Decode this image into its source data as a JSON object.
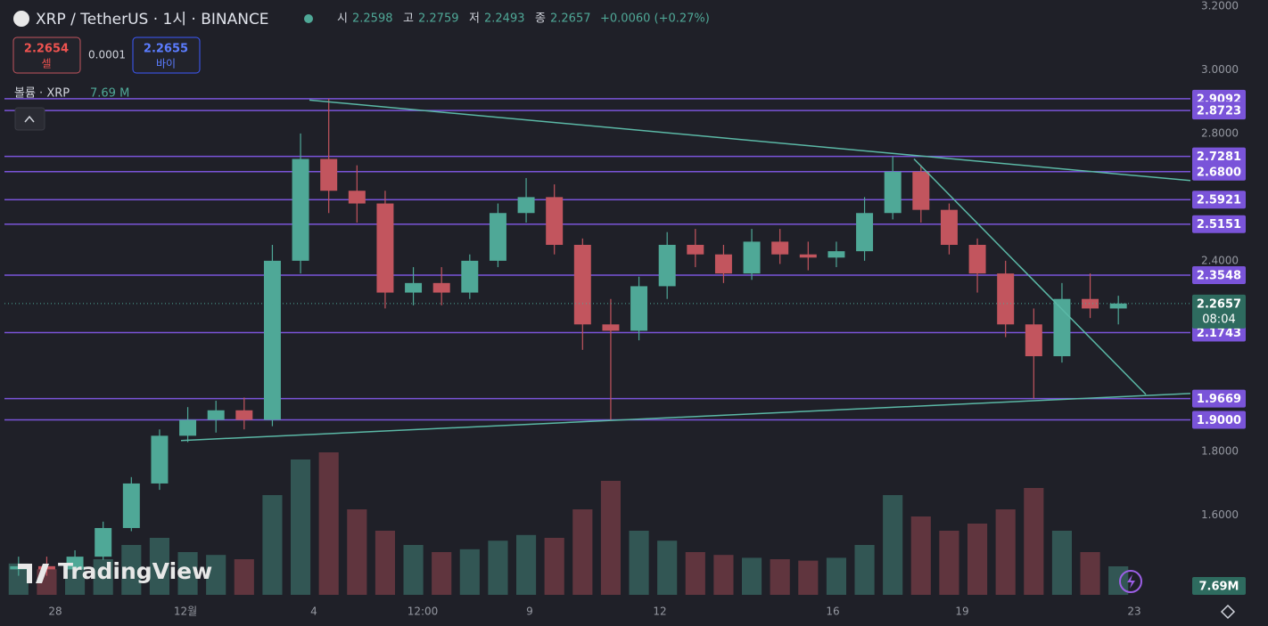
{
  "header": {
    "symbol": "XRP / TetherUS · 1시 · BINANCE",
    "ohlc": [
      {
        "key": "시",
        "value": "2.2598"
      },
      {
        "key": "고",
        "value": "2.2759"
      },
      {
        "key": "저",
        "value": "2.2493"
      },
      {
        "key": "종",
        "value": "2.2657"
      }
    ],
    "change": "+0.0060 (+0.27%)",
    "sell": {
      "price": "2.2654",
      "label": "셀"
    },
    "spread": "0.0001",
    "buy": {
      "price": "2.2655",
      "label": "바이"
    },
    "volume_title": "볼륨 · XRP",
    "volume_value": "7.69 M",
    "logo": "TradingView"
  },
  "chart_data": {
    "type": "candlestick",
    "ylim": [
      1.35,
      3.2
    ],
    "yticks": [
      {
        "value": 3.2,
        "label": "3.2000"
      },
      {
        "value": 3.0,
        "label": "3.0000"
      },
      {
        "value": 2.8,
        "label": "2.8000"
      },
      {
        "value": 2.4,
        "label": "2.4000"
      },
      {
        "value": 1.8,
        "label": "1.8000"
      },
      {
        "value": 1.6,
        "label": "1.6000"
      }
    ],
    "x_labels": [
      "28",
      "12월",
      "4",
      "12:00",
      "9",
      "12",
      "16",
      "19",
      "23"
    ],
    "open": [
      1.43,
      1.44,
      1.43,
      1.47,
      1.56,
      1.7,
      1.85,
      1.9,
      1.93,
      1.9,
      2.4,
      2.72,
      2.62,
      2.58,
      2.3,
      2.33,
      2.3,
      2.4,
      2.55,
      2.6,
      2.45,
      2.2,
      2.18,
      2.32,
      2.45,
      2.42,
      2.36,
      2.46,
      2.42,
      2.41,
      2.43,
      2.55,
      2.68,
      2.56,
      2.45,
      2.36,
      2.2,
      2.1,
      2.28,
      2.25
    ],
    "high": [
      1.47,
      1.47,
      1.49,
      1.58,
      1.72,
      1.87,
      1.94,
      1.96,
      1.97,
      2.45,
      2.8,
      2.9092,
      2.7,
      2.62,
      2.38,
      2.38,
      2.42,
      2.58,
      2.66,
      2.64,
      2.47,
      2.28,
      2.35,
      2.49,
      2.5,
      2.45,
      2.5,
      2.5,
      2.46,
      2.46,
      2.6,
      2.7281,
      2.7,
      2.58,
      2.47,
      2.4,
      2.25,
      2.33,
      2.36,
      2.29
    ],
    "low": [
      1.41,
      1.41,
      1.42,
      1.46,
      1.55,
      1.68,
      1.83,
      1.86,
      1.87,
      1.88,
      2.36,
      2.55,
      2.52,
      2.25,
      2.26,
      2.26,
      2.28,
      2.38,
      2.52,
      2.42,
      2.12,
      1.9,
      2.15,
      2.28,
      2.38,
      2.33,
      2.34,
      2.39,
      2.37,
      2.38,
      2.4,
      2.53,
      2.52,
      2.42,
      2.3,
      2.16,
      1.9669,
      2.08,
      2.22,
      2.2
    ],
    "close": [
      1.44,
      1.43,
      1.47,
      1.56,
      1.7,
      1.85,
      1.9,
      1.93,
      1.9,
      2.4,
      2.72,
      2.62,
      2.58,
      2.3,
      2.33,
      2.3,
      2.4,
      2.55,
      2.6,
      2.45,
      2.2,
      2.18,
      2.32,
      2.45,
      2.42,
      2.36,
      2.46,
      2.42,
      2.41,
      2.43,
      2.55,
      2.68,
      2.56,
      2.45,
      2.36,
      2.2,
      2.1,
      2.28,
      2.25,
      2.2657
    ],
    "volume": [
      22,
      18,
      20,
      25,
      35,
      40,
      30,
      28,
      25,
      70,
      95,
      100,
      60,
      45,
      35,
      30,
      32,
      38,
      42,
      40,
      60,
      80,
      45,
      38,
      30,
      28,
      26,
      25,
      24,
      26,
      35,
      70,
      55,
      45,
      50,
      60,
      75,
      45,
      30,
      20
    ],
    "vlim": [
      0,
      100
    ],
    "levels": [
      {
        "value": 2.9092,
        "label": "2.9092"
      },
      {
        "value": 2.8723,
        "label": "2.8723"
      },
      {
        "value": 2.7281,
        "label": "2.7281"
      },
      {
        "value": 2.68,
        "label": "2.6800"
      },
      {
        "value": 2.5921,
        "label": "2.5921"
      },
      {
        "value": 2.5151,
        "label": "2.5151"
      },
      {
        "value": 2.3548,
        "label": "2.3548"
      },
      {
        "value": 2.1743,
        "label": "2.1743"
      },
      {
        "value": 1.9669,
        "label": "1.9669"
      },
      {
        "value": 1.9,
        "label": "1.9000"
      }
    ],
    "last": {
      "value": 2.2657,
      "label": "2.2657",
      "countdown": "08:04"
    },
    "volume_label": "7.69M",
    "trendlines": [
      [
        2.905,
        2.652
      ],
      [
        1.835,
        1.983
      ],
      [
        2.72,
        1.98
      ]
    ],
    "colors": {
      "up": "#4fa897",
      "down": "#c2555e",
      "level": "#7a54d9",
      "trend": "#5bb8a6"
    }
  }
}
